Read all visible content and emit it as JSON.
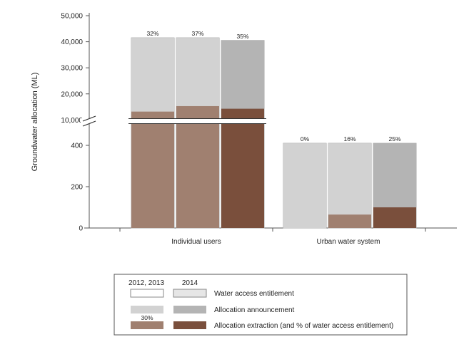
{
  "chart_data": {
    "type": "bar",
    "ylabel": "Groundwater allocation (ML)",
    "y_axis": {
      "broken": true,
      "lower_ylim": [
        0,
        500
      ],
      "lower_ticks": [
        "0",
        "200",
        "400"
      ],
      "upper_ylim": [
        9000,
        50000
      ],
      "upper_ticks": [
        "10,000",
        "20,000",
        "30,000",
        "40,000",
        "50,000"
      ]
    },
    "categories": [
      "Individual users",
      "Urban water system"
    ],
    "bars": [
      {
        "category": "Individual users",
        "period": "2012",
        "entitlement": 41500,
        "announcement": 41500,
        "extraction": 13200,
        "extraction_pct_label": "32%"
      },
      {
        "category": "Individual users",
        "period": "2013",
        "entitlement": 41500,
        "announcement": 41500,
        "extraction": 15300,
        "extraction_pct_label": "37%"
      },
      {
        "category": "Individual users",
        "period": "2014",
        "entitlement": 40500,
        "announcement": 40500,
        "extraction": 14300,
        "extraction_pct_label": "35%"
      },
      {
        "category": "Urban water system",
        "period": "2012",
        "entitlement": 410,
        "announcement": 410,
        "extraction": 0,
        "extraction_pct_label": "0%"
      },
      {
        "category": "Urban water system",
        "period": "2013",
        "entitlement": 410,
        "announcement": 410,
        "extraction": 65,
        "extraction_pct_label": "16%"
      },
      {
        "category": "Urban water system",
        "period": "2014",
        "entitlement": 410,
        "announcement": 410,
        "extraction": 100,
        "extraction_pct_label": "25%"
      }
    ],
    "legend": {
      "header_2012_2013": "2012, 2013",
      "header_2014": "2014",
      "sample_pct": "30%",
      "items": [
        {
          "key": "entitlement",
          "label": "Water access entitlement"
        },
        {
          "key": "announcement",
          "label": "Allocation announcement"
        },
        {
          "key": "extraction",
          "label": "Allocation extraction (and % of water access entitlement)"
        }
      ]
    },
    "colors": {
      "entitlement_2012_2013": "#ffffff",
      "entitlement_2014": "#e6e6e6",
      "announcement_2012_2013": "#d2d2d2",
      "announcement_2014": "#b4b4b4",
      "extraction_2012_2013": "#a08070",
      "extraction_2014": "#7a4f3c",
      "axis": "#555555"
    }
  }
}
